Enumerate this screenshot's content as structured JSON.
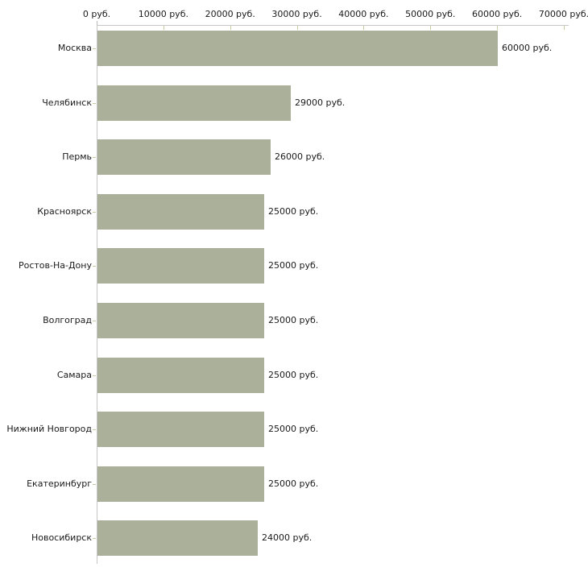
{
  "chart_data": {
    "type": "bar",
    "orientation": "horizontal",
    "title": "",
    "categories": [
      "Москва",
      "Челябинск",
      "Пермь",
      "Красноярск",
      "Ростов-На-Дону",
      "Волгоград",
      "Самара",
      "Нижний Новгород",
      "Екатеринбург",
      "Новосибирск"
    ],
    "values": [
      60000,
      29000,
      26000,
      25000,
      25000,
      25000,
      25000,
      25000,
      25000,
      24000
    ],
    "bar_labels": [
      "60000 руб.",
      "29000 руб.",
      "26000 руб.",
      "25000 руб.",
      "25000 руб.",
      "25000 руб.",
      "25000 руб.",
      "25000 руб.",
      "25000 руб.",
      "24000 руб."
    ],
    "x_ticks": [
      {
        "value": 0,
        "label": "0 руб."
      },
      {
        "value": 10000,
        "label": "10000 руб."
      },
      {
        "value": 20000,
        "label": "20000 руб."
      },
      {
        "value": 30000,
        "label": "30000 руб."
      },
      {
        "value": 40000,
        "label": "40000 руб."
      },
      {
        "value": 50000,
        "label": "50000 руб."
      },
      {
        "value": 60000,
        "label": "60000 руб."
      },
      {
        "value": 70000,
        "label": "70000 руб."
      }
    ],
    "xlim": [
      0,
      70000
    ],
    "xlabel": "",
    "ylabel": "",
    "unit": "руб.",
    "grid": false,
    "legend": null,
    "colors": {
      "bar": "#abb09a",
      "axis_line": "#c6c6c6",
      "tick_mark": "#c9c9a1",
      "text": "#1a1a1a",
      "background": "#ffffff"
    }
  }
}
